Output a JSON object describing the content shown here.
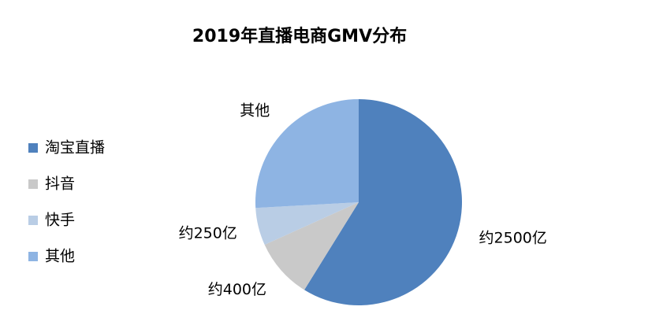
{
  "chart_data": {
    "type": "pie",
    "title": "2019年直播电商GMV分布",
    "categories": [
      "淘宝直播",
      "抖音",
      "快手",
      "其他"
    ],
    "values": [
      2500,
      400,
      250,
      1100
    ],
    "value_labels": [
      "约2500亿",
      "约400亿",
      "约250亿",
      null
    ],
    "colors": [
      "#4f81bd",
      "#c9c9c9",
      "#b9cde5",
      "#8eb4e3"
    ],
    "legend": "left"
  }
}
